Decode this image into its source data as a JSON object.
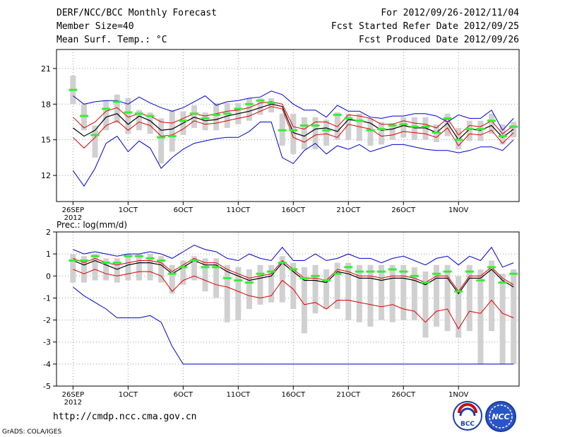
{
  "header": {
    "title": "DERF/NCC/BCC Monthly Forecast",
    "member_size": "Member Size=40",
    "variable": "Mean Surf. Temp.: °C",
    "period": "For 2012/09/26-2012/11/04",
    "refer_date": "Fcst Started Refer Date 2012/09/25",
    "produced_date": "Fcst Produced Date 2012/09/26"
  },
  "footer": {
    "url": "http://cmdp.ncc.cma.gov.cn",
    "grads": "GrADS: COLA/IGES",
    "logo_bcc": "BCC",
    "logo_ncc": "NCC"
  },
  "colors": {
    "grid": "#999999",
    "box": "#d0d0d0",
    "median": "#33ee33",
    "mean": "#000000",
    "spread": "#dd0000",
    "range": "#0000cc"
  },
  "chart_data": [
    {
      "type": "line",
      "title": "Mean Surf. Temp.: °C",
      "ylabel": "°C",
      "ylim": [
        9.8,
        22.6
      ],
      "yticks": [
        12,
        15,
        18,
        21
      ],
      "xlim": [
        -1.5,
        40.5
      ],
      "xtick_positions": [
        0,
        5,
        10,
        15,
        20,
        25,
        30,
        35
      ],
      "xtick_labels": [
        "26SEP",
        "1OCT",
        "6OCT",
        "11OCT",
        "16OCT",
        "21OCT",
        "26OCT",
        "1NOV"
      ],
      "xtick_year": "2012",
      "series": [
        {
          "name": "max",
          "values": [
            12.4,
            11.1,
            12.6,
            14.7,
            15.3,
            14.0,
            14.9,
            14.3,
            12.6,
            13.5,
            14.2,
            14.7,
            14.9,
            15.1,
            15.2,
            15.2,
            15.7,
            16.5,
            16.5,
            13.5,
            13.0,
            14.1,
            14.7,
            13.8,
            14.5,
            14.2,
            14.6,
            14.0,
            14.3,
            14.6,
            14.6,
            14.4,
            14.2,
            14.1,
            14.1,
            13.9,
            14.1,
            14.4,
            14.4,
            14.1,
            15.0
          ]
        },
        {
          "name": "max_upper",
          "values": [
            18.7,
            18.0,
            18.2,
            18.3,
            18.3,
            18.0,
            18.6,
            18.1,
            17.7,
            17.4,
            17.7,
            18.2,
            18.7,
            17.9,
            18.2,
            18.3,
            18.5,
            18.6,
            19.1,
            18.8,
            18.0,
            17.5,
            17.5,
            16.9,
            17.9,
            17.4,
            17.4,
            16.9,
            16.8,
            17.0,
            17.0,
            17.2,
            17.2,
            17.0,
            16.5,
            17.1,
            16.8,
            16.8,
            17.5,
            15.8,
            16.8
          ]
        },
        {
          "name": "mean",
          "values": [
            16.0,
            15.3,
            15.8,
            16.9,
            17.2,
            16.3,
            17.0,
            16.6,
            15.8,
            15.9,
            16.4,
            16.9,
            16.6,
            16.7,
            17.0,
            17.2,
            17.4,
            17.7,
            18.0,
            17.8,
            15.6,
            15.3,
            15.9,
            16.0,
            15.7,
            16.7,
            16.6,
            16.4,
            15.8,
            15.9,
            16.2,
            16.0,
            16.0,
            15.6,
            16.4,
            15.0,
            15.9,
            15.8,
            16.2,
            15.2,
            15.9
          ]
        },
        {
          "name": "upper",
          "values": [
            16.9,
            16.0,
            16.5,
            17.4,
            17.7,
            16.9,
            17.2,
            17.0,
            16.5,
            16.4,
            16.8,
            17.2,
            17.0,
            17.2,
            17.4,
            17.5,
            17.7,
            18.1,
            18.2,
            18.0,
            16.1,
            15.9,
            16.5,
            16.5,
            16.1,
            17.1,
            17.0,
            16.8,
            16.3,
            16.3,
            16.6,
            16.4,
            16.3,
            16.0,
            16.8,
            15.4,
            16.2,
            16.1,
            16.6,
            15.5,
            16.2
          ]
        },
        {
          "name": "lower",
          "values": [
            15.2,
            14.3,
            15.2,
            16.2,
            16.6,
            15.8,
            16.5,
            16.2,
            15.3,
            15.4,
            15.9,
            16.6,
            16.3,
            16.4,
            16.6,
            16.8,
            17.0,
            17.4,
            17.8,
            17.6,
            15.2,
            14.8,
            15.4,
            15.5,
            15.2,
            16.3,
            16.1,
            15.9,
            15.3,
            15.4,
            15.7,
            15.6,
            15.5,
            15.2,
            16.0,
            14.5,
            15.5,
            15.4,
            15.8,
            14.7,
            15.6
          ]
        },
        {
          "name": "median",
          "values": [
            19.2,
            17.0,
            15.4,
            17.6,
            18.2,
            17.3,
            17.2,
            17.0,
            15.2,
            15.3,
            16.6,
            17.2,
            16.8,
            17.1,
            17.2,
            17.6,
            18.0,
            18.3,
            18.1,
            15.8,
            15.8,
            16.2,
            16.2,
            15.8,
            17.1,
            16.8,
            16.6,
            15.8,
            15.9,
            16.2,
            16.3,
            16.1,
            16.1,
            15.6,
            16.8,
            15.0,
            15.9,
            15.9,
            16.6,
            15.3,
            16.1
          ]
        },
        {
          "name": "box_high",
          "values": [
            20.4,
            18.0,
            16.2,
            18.3,
            18.8,
            18.5,
            17.5,
            17.3,
            16.8,
            17.5,
            17.4,
            17.9,
            17.3,
            18.1,
            18.1,
            18.1,
            18.5,
            18.5,
            18.5,
            17.2,
            17.2,
            16.9,
            16.9,
            16.7,
            17.3,
            17.2,
            17.2,
            16.8,
            16.5,
            16.4,
            16.9,
            16.9,
            16.9,
            16.3,
            17.2,
            16.0,
            16.6,
            16.6,
            17.2,
            16.3,
            16.5
          ]
        },
        {
          "name": "box_low",
          "values": [
            18.0,
            15.8,
            13.5,
            15.8,
            16.4,
            15.5,
            15.8,
            15.5,
            13.0,
            14.0,
            15.4,
            16.0,
            15.8,
            15.8,
            16.0,
            16.3,
            16.6,
            17.1,
            17.3,
            14.5,
            13.8,
            14.2,
            14.2,
            14.5,
            15.0,
            15.0,
            14.9,
            14.5,
            14.6,
            15.0,
            15.2,
            15.0,
            15.0,
            14.8,
            15.3,
            14.2,
            14.9,
            14.9,
            15.5,
            14.6,
            15.2
          ]
        }
      ]
    },
    {
      "type": "line",
      "title": "Prec.: log(mm/d)",
      "ylabel": "log(mm/d)",
      "ylim": [
        -5,
        2
      ],
      "yticks": [
        -5,
        -4,
        -3,
        -2,
        -1,
        0,
        1,
        2
      ],
      "xlim": [
        -1.5,
        40.5
      ],
      "xtick_positions": [
        0,
        5,
        10,
        15,
        20,
        25,
        30,
        35
      ],
      "xtick_labels": [
        "26SEP",
        "1OCT",
        "6OCT",
        "11OCT",
        "16OCT",
        "21OCT",
        "26OCT",
        "1NOV"
      ],
      "xtick_year": "2012",
      "series": [
        {
          "name": "max",
          "values": [
            1.2,
            1.0,
            1.1,
            1.0,
            0.9,
            1.0,
            1.0,
            1.1,
            1.0,
            0.8,
            1.1,
            1.4,
            1.2,
            1.1,
            0.8,
            0.7,
            1.0,
            0.8,
            0.7,
            1.3,
            0.7,
            0.7,
            1.0,
            0.7,
            0.8,
            1.0,
            0.8,
            0.8,
            0.6,
            0.8,
            0.9,
            0.7,
            0.5,
            0.8,
            0.9,
            0.5,
            0.9,
            0.7,
            1.3,
            0.4,
            0.6
          ]
        },
        {
          "name": "min",
          "values": [
            -0.5,
            -0.9,
            -1.2,
            -1.5,
            -1.9,
            -1.9,
            -1.9,
            -1.8,
            -2.1,
            -3.2,
            -4.0,
            -4.0,
            -4.0,
            -4.0,
            -4.0,
            -4.0,
            -4.0,
            -4.0,
            -4.0,
            -4.0,
            -4.0,
            -4.0,
            -4.0,
            -4.0,
            -4.0,
            -4.0,
            -4.0,
            -4.0,
            -4.0,
            -4.0,
            -4.0,
            -4.0,
            -4.0,
            -4.0,
            -4.0,
            -4.0,
            -4.0,
            -4.0,
            -4.0,
            -4.0,
            -4.0
          ]
        },
        {
          "name": "mean",
          "values": [
            0.7,
            0.5,
            0.7,
            0.5,
            0.3,
            0.5,
            0.6,
            0.6,
            0.5,
            0.1,
            0.4,
            0.7,
            0.5,
            0.5,
            0.2,
            0.0,
            -0.2,
            -0.1,
            0.0,
            0.6,
            0.2,
            -0.2,
            -0.2,
            -0.3,
            0.2,
            0.1,
            -0.1,
            -0.1,
            -0.2,
            -0.1,
            -0.1,
            -0.2,
            -0.4,
            -0.1,
            -0.1,
            -0.8,
            -0.1,
            -0.1,
            0.3,
            -0.2,
            -0.5
          ]
        },
        {
          "name": "upper",
          "values": [
            0.8,
            0.6,
            0.8,
            0.6,
            0.5,
            0.6,
            0.7,
            0.7,
            0.6,
            0.2,
            0.5,
            0.8,
            0.6,
            0.6,
            0.3,
            0.1,
            -0.1,
            0.0,
            0.1,
            0.7,
            0.3,
            -0.1,
            -0.1,
            -0.2,
            0.3,
            0.2,
            0.0,
            0.0,
            -0.1,
            0.0,
            0.0,
            -0.1,
            -0.3,
            0.0,
            0.0,
            -0.7,
            0.0,
            0.0,
            0.4,
            -0.1,
            -0.4
          ]
        },
        {
          "name": "lower",
          "values": [
            0.3,
            0.1,
            0.3,
            0.1,
            0.0,
            0.1,
            0.2,
            0.2,
            0.0,
            -0.7,
            -0.2,
            0.0,
            -0.2,
            -0.4,
            -0.5,
            -0.7,
            -0.9,
            -1.0,
            -0.9,
            -0.2,
            -0.6,
            -1.3,
            -1.2,
            -1.5,
            -1.1,
            -1.1,
            -1.2,
            -1.3,
            -1.4,
            -1.3,
            -1.5,
            -1.6,
            -2.1,
            -1.6,
            -1.5,
            -2.4,
            -1.6,
            -1.7,
            -1.1,
            -1.7,
            -1.9
          ]
        },
        {
          "name": "median",
          "values": [
            0.7,
            0.7,
            0.9,
            0.6,
            0.6,
            0.9,
            0.9,
            0.8,
            0.7,
            0.1,
            0.4,
            0.7,
            0.4,
            0.4,
            -0.1,
            -0.2,
            -0.3,
            0.1,
            0.2,
            0.6,
            0.3,
            -0.1,
            0.0,
            -0.2,
            0.1,
            0.4,
            0.2,
            0.2,
            0.2,
            0.3,
            0.2,
            0.0,
            -0.3,
            0.1,
            0.2,
            -0.7,
            0.2,
            -0.2,
            0.4,
            -0.3,
            0.1
          ]
        },
        {
          "name": "box_high",
          "values": [
            1.0,
            0.9,
            1.0,
            0.8,
            0.8,
            1.0,
            1.0,
            1.0,
            0.9,
            0.5,
            0.7,
            0.9,
            0.8,
            0.8,
            0.5,
            0.4,
            0.3,
            0.5,
            0.5,
            0.9,
            0.6,
            0.4,
            0.5,
            0.3,
            0.6,
            0.6,
            0.5,
            0.5,
            0.5,
            0.5,
            0.5,
            0.4,
            0.2,
            0.5,
            0.5,
            0.0,
            0.5,
            0.3,
            0.7,
            0.1,
            0.3
          ]
        },
        {
          "name": "box_low",
          "values": [
            -0.3,
            -0.3,
            -0.2,
            -0.2,
            -0.3,
            -0.2,
            -0.2,
            -0.2,
            -0.3,
            -0.8,
            -0.4,
            -0.2,
            -0.7,
            -1.0,
            -2.1,
            -2.0,
            -1.5,
            -1.3,
            -1.2,
            -1.2,
            -1.5,
            -2.6,
            -1.7,
            -1.5,
            -1.5,
            -2.0,
            -2.1,
            -2.3,
            -2.0,
            -2.1,
            -2.0,
            -2.0,
            -2.8,
            -2.3,
            -2.5,
            -2.8,
            -2.5,
            -4.0,
            -2.5,
            -4.0,
            -4.0
          ]
        }
      ]
    }
  ]
}
